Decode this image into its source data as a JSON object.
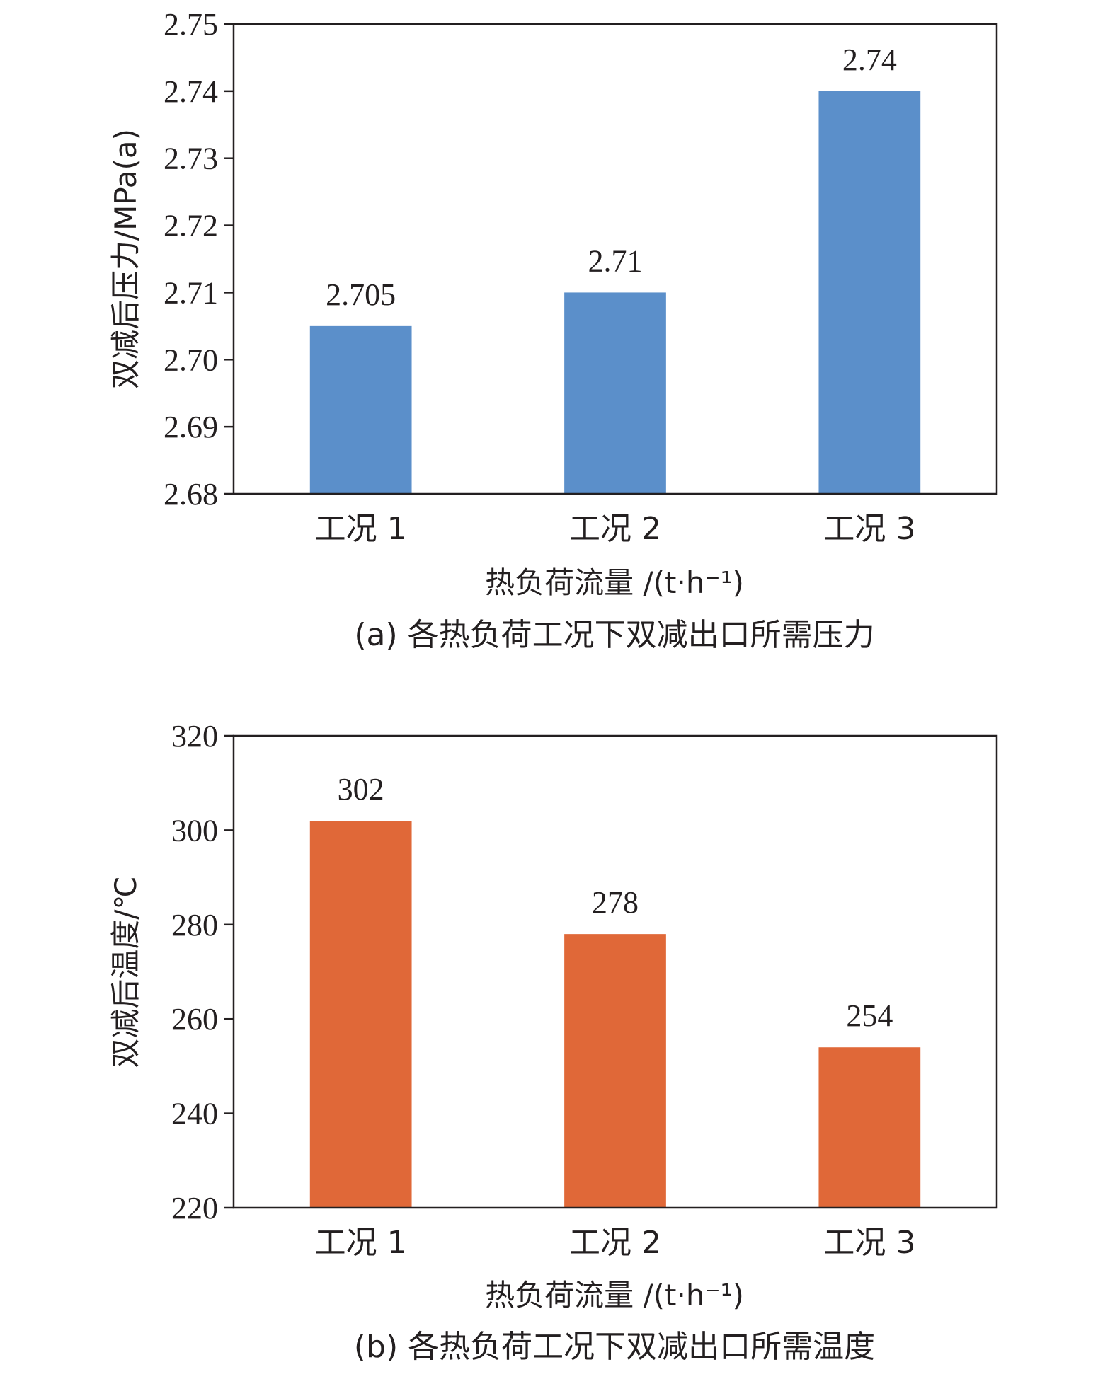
{
  "chart_data": [
    {
      "type": "bar",
      "categories": [
        "工况 1",
        "工况 2",
        "工况 3"
      ],
      "values": [
        2.705,
        2.71,
        2.74
      ],
      "value_labels": [
        "2.705",
        "2.71",
        "2.74"
      ],
      "ylim": [
        2.68,
        2.75
      ],
      "yticks": [
        "2.68",
        "2.69",
        "2.70",
        "2.71",
        "2.72",
        "2.73",
        "2.74",
        "2.75"
      ],
      "ylabel": "双减后压力/MPa(a)",
      "xlabel": "热负荷流量 /(t·h⁻¹)",
      "caption": "(a) 各热负荷工况下双减出口所需压力",
      "bar_color": "#5b8fca",
      "grid": false
    },
    {
      "type": "bar",
      "categories": [
        "工况 1",
        "工况 2",
        "工况 3"
      ],
      "values": [
        302,
        278,
        254
      ],
      "value_labels": [
        "302",
        "278",
        "254"
      ],
      "ylim": [
        220,
        320
      ],
      "yticks": [
        "220",
        "240",
        "260",
        "280",
        "300",
        "320"
      ],
      "ylabel": "双减后温度/℃",
      "xlabel": "热负荷流量 /(t·h⁻¹)",
      "caption": "(b) 各热负荷工况下双减出口所需温度",
      "bar_color": "#e06838",
      "grid": false
    }
  ]
}
